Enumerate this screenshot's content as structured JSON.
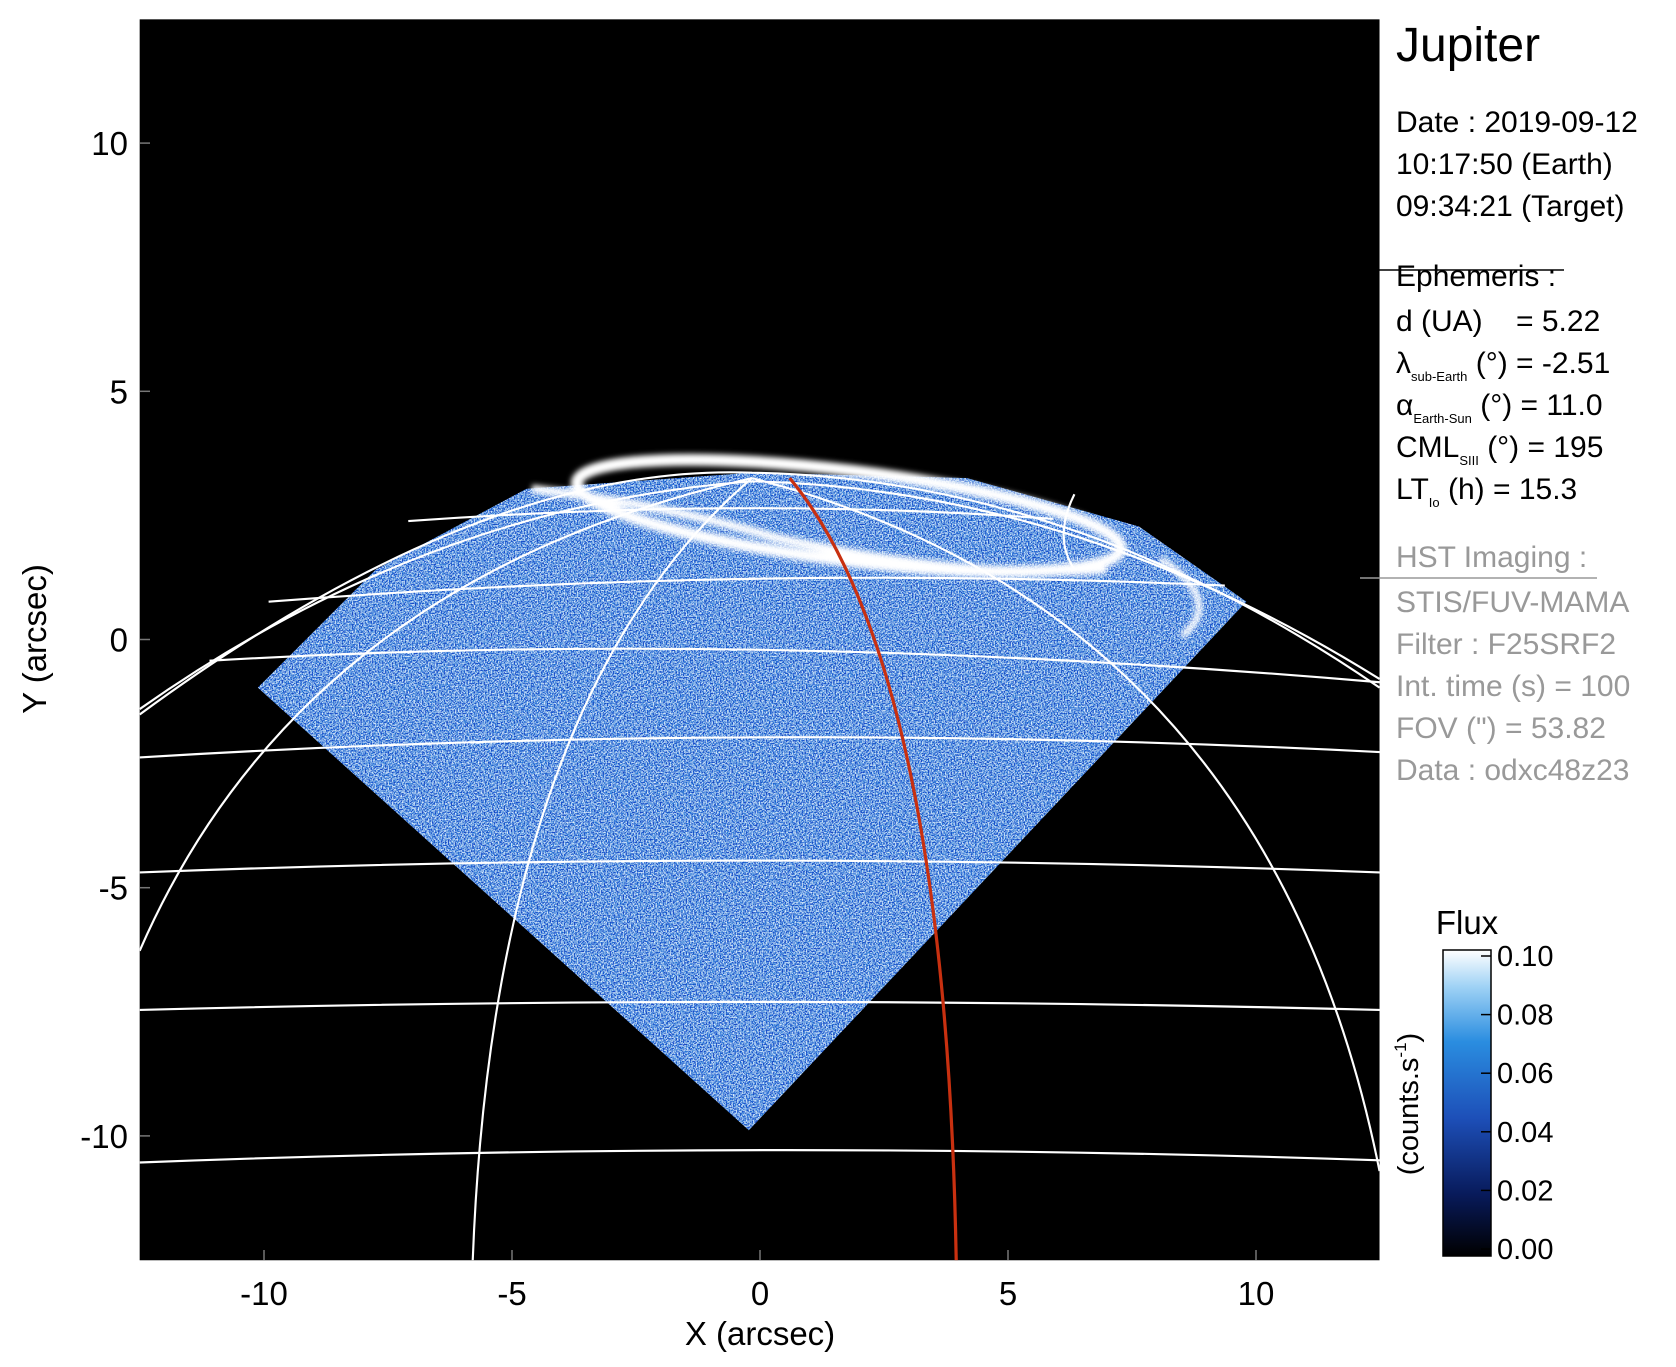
{
  "chart_data": {
    "type": "image",
    "title": "Jupiter",
    "xlabel": "X (arcsec)",
    "ylabel": "Y (arcsec)",
    "xlim": [
      -12.5,
      12.5
    ],
    "ylim": [
      -12.5,
      12.5
    ],
    "xticks": [
      -10,
      -5,
      0,
      5,
      10
    ],
    "yticks": [
      -10,
      -5,
      0,
      5,
      10
    ],
    "colorbar": {
      "title": "Flux",
      "label": {
        "text": "(counts.s",
        "superscript": "-1",
        "close": ")"
      },
      "lim": [
        0,
        0.1
      ],
      "ticks": [
        {
          "value": 0,
          "label": "0.00"
        },
        0.02,
        0.04,
        0.06,
        0.08,
        {
          "value": 0.1,
          "label": "0.10"
        }
      ]
    }
  },
  "info": {
    "date": [
      "Date : 2019-09-12",
      "10:17:50 (Earth)",
      "09:34:21 (Target)"
    ],
    "ephemeris": {
      "title": "Ephemeris :",
      "items": [
        {
          "main": "d (UA)    = 5.22"
        },
        {
          "main": "λ",
          "sub": "sub-Earth",
          "rest": " (°) = -2.51"
        },
        {
          "main": "α",
          "sub": "Earth-Sun",
          "rest": " (°) = 11.0"
        },
        {
          "main": "CML",
          "sub": "SIII",
          "rest": " (°) = 195"
        },
        {
          "main": "LT",
          "sub": "Io",
          "rest": " (h) = 15.3"
        }
      ]
    },
    "imaging": {
      "title": "HST Imaging :",
      "items": [
        "STIS/FUV-MAMA",
        "Filter : F25SRF2",
        "Int. time (s) = 100",
        "FOV (\") = 53.82",
        "Data : odxc48z23"
      ]
    }
  }
}
